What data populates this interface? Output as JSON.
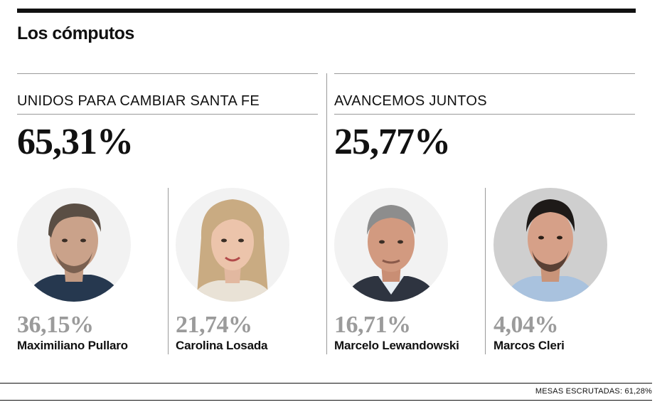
{
  "title": "Los cómputos",
  "parties": [
    {
      "name": "UNIDOS PARA CAMBIAR SANTA FE",
      "percentage": "65,31%",
      "candidates": [
        {
          "percentage": "36,15%",
          "name": "Maximiliano Pullaro"
        },
        {
          "percentage": "21,74%",
          "name": "Carolina Losada"
        }
      ]
    },
    {
      "name": "AVANCEMOS JUNTOS",
      "percentage": "25,77%",
      "candidates": [
        {
          "percentage": "16,71%",
          "name": "Marcelo Lewandowski"
        },
        {
          "percentage": "4,04%",
          "name": "Marcos Cleri"
        }
      ]
    }
  ],
  "footer": "MESAS ESCRUTADAS: 61,28%",
  "colors": {
    "ink": "#111111",
    "muted": "#9b9b9b",
    "rule": "#9a9a9a"
  }
}
